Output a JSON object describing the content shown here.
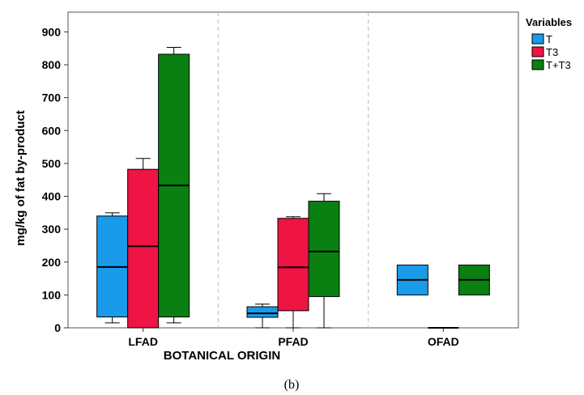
{
  "chart_data": {
    "type": "boxplot",
    "xlabel": "BOTANICAL ORIGIN",
    "ylabel": "mg/kg of fat by-product",
    "ylim": [
      0,
      960
    ],
    "yticks": [
      0,
      100,
      200,
      300,
      400,
      500,
      600,
      700,
      800,
      900
    ],
    "categories": [
      "LFAD",
      "PFAD",
      "OFAD"
    ],
    "legend": {
      "title": "Variables",
      "position": "right"
    },
    "grid": false,
    "series": [
      {
        "name": "T",
        "color": "#1a9bea",
        "boxes": [
          {
            "category": "LFAD",
            "min": 15,
            "q1": 33,
            "median": 185,
            "q3": 340,
            "max": 350
          },
          {
            "category": "PFAD",
            "min": 0,
            "q1": 32,
            "median": 44,
            "q3": 64,
            "max": 72
          },
          {
            "category": "OFAD",
            "min": 100,
            "q1": 100,
            "median": 146,
            "q3": 191,
            "max": 191
          }
        ]
      },
      {
        "name": "T3",
        "color": "#ee1444",
        "boxes": [
          {
            "category": "LFAD",
            "min": 0,
            "q1": 0,
            "median": 248,
            "q3": 482,
            "max": 515
          },
          {
            "category": "PFAD",
            "min": 0,
            "q1": 52,
            "median": 184,
            "q3": 333,
            "max": 338
          },
          {
            "category": "OFAD",
            "min": 0,
            "q1": 0,
            "median": 0,
            "q3": 0,
            "max": 0
          }
        ]
      },
      {
        "name": "T+T3",
        "color": "#0a7f12",
        "boxes": [
          {
            "category": "LFAD",
            "min": 15,
            "q1": 33,
            "median": 433,
            "q3": 832,
            "max": 853
          },
          {
            "category": "PFAD",
            "min": 0,
            "q1": 95,
            "median": 232,
            "q3": 385,
            "max": 408
          },
          {
            "category": "OFAD",
            "min": 100,
            "q1": 100,
            "median": 146,
            "q3": 191,
            "max": 191
          }
        ]
      }
    ]
  },
  "caption": "(b)"
}
